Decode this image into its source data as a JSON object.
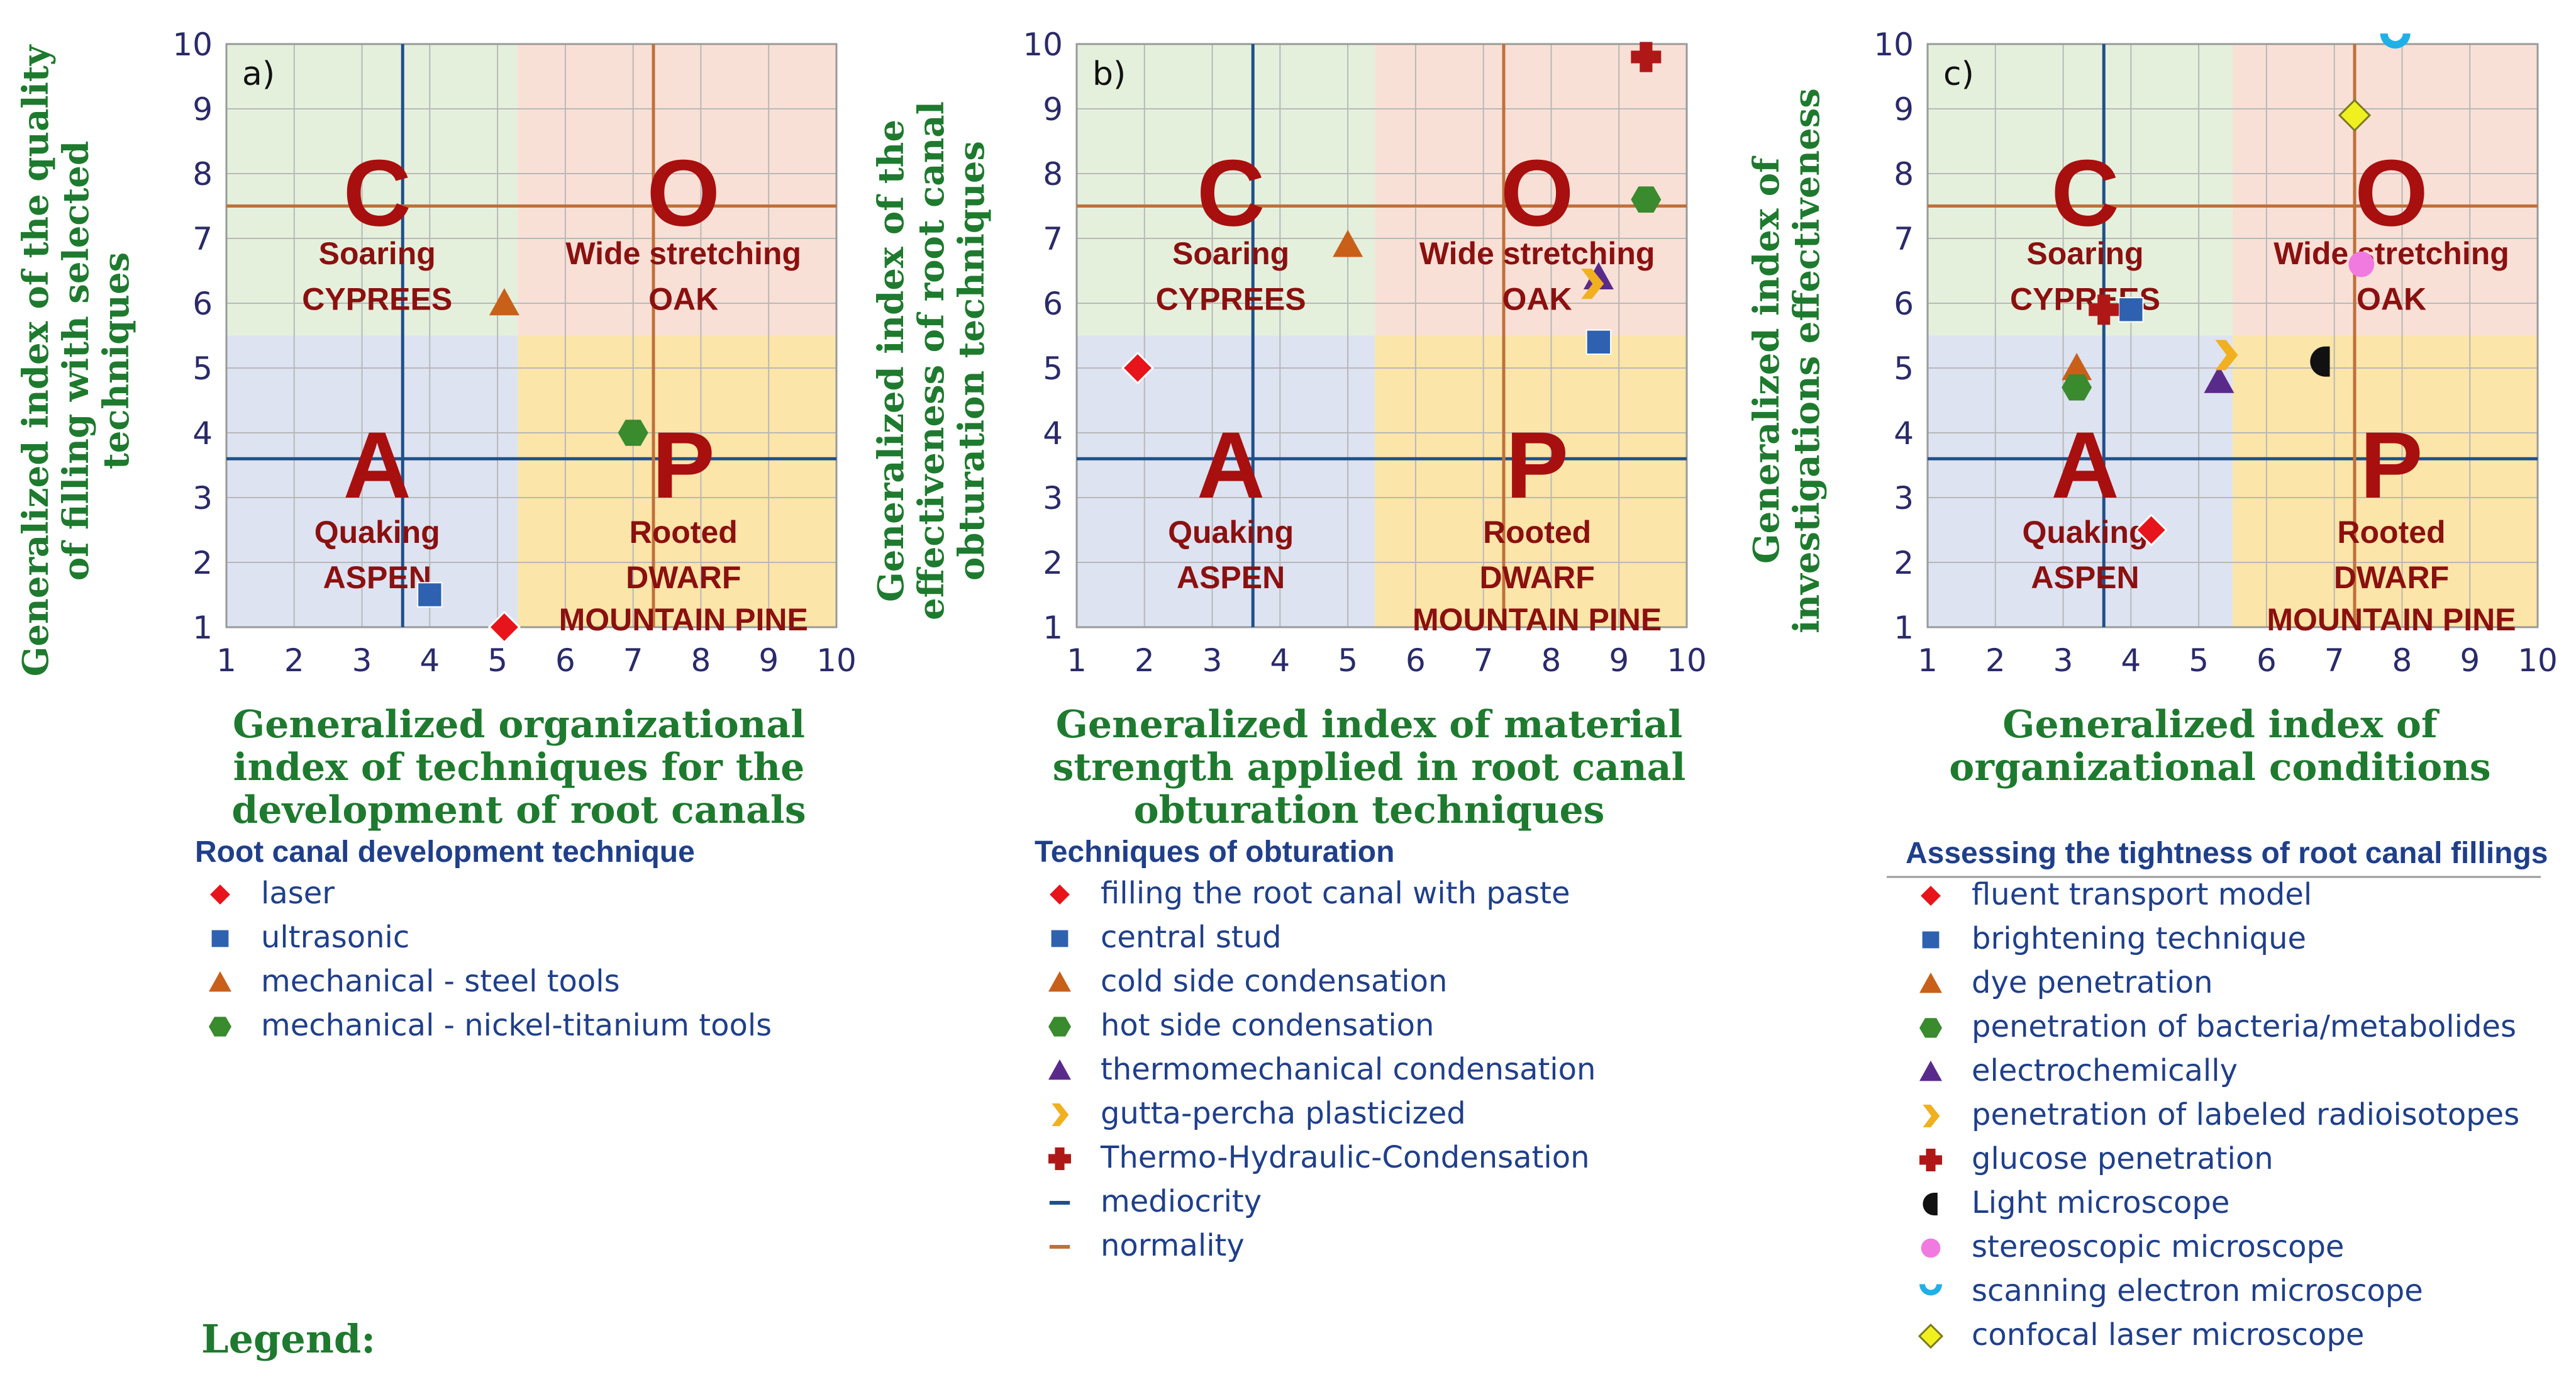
{
  "legend_caption": "Legend:",
  "quadrants": {
    "C": {
      "letter": "C",
      "line1": "Soaring",
      "line2": "CYPREES"
    },
    "O": {
      "letter": "O",
      "line1": "Wide stretching",
      "line2": "OAK"
    },
    "A": {
      "letter": "A",
      "line1": "Quaking",
      "line2": "ASPEN"
    },
    "P": {
      "letter": "P",
      "line1": "Rooted",
      "line2": "DWARF",
      "line3": "MOUNTAIN PINE"
    }
  },
  "colors": {
    "green_zone": "#e4f0dc",
    "orange_zone": "#f9e0d6",
    "blue_zone": "#dde3f1",
    "yellow_zone": "#fbe5a8",
    "mediocrity": "#1f4f8a",
    "normality": "#c0703a",
    "grid": "#b8b8b8"
  },
  "chart_data": [
    {
      "type": "scatter",
      "panel": "a)",
      "xlim": [
        1,
        10
      ],
      "ylim": [
        1,
        10
      ],
      "xticks": [
        "1",
        "2",
        "3",
        "4",
        "5",
        "6",
        "7",
        "8",
        "9",
        "10"
      ],
      "yticks": [
        "1",
        "2",
        "3",
        "4",
        "5",
        "6",
        "7",
        "8",
        "9",
        "10"
      ],
      "xlabel_lines": [
        "Generalized organizational",
        "index of techniques for the",
        "development of root canals"
      ],
      "ylabel_lines": [
        "Generalized index of the quality",
        "of filling with selected",
        "techniques"
      ],
      "zones": {
        "x_split": 5.3,
        "y_split": 5.5
      },
      "mediocrity": {
        "x": 7.3,
        "y": 3.6
      },
      "normality": {
        "x": 7.3,
        "y": 7.5
      },
      "legend_title": "Root canal development technique",
      "series": [
        {
          "name": "laser",
          "marker": "diamond",
          "color": "#e8141c",
          "x": 5.1,
          "y": 1.0
        },
        {
          "name": "ultrasonic",
          "marker": "square",
          "color": "#2e62b0",
          "x": 4.0,
          "y": 1.5
        },
        {
          "name": "mechanical - steel tools",
          "marker": "triangle",
          "color": "#c8601a",
          "x": 5.1,
          "y": 6.0
        },
        {
          "name": "mechanical - nickel-titanium tools",
          "marker": "hexagon",
          "color": "#3a8a2e",
          "x": 7.0,
          "y": 4.0
        }
      ]
    },
    {
      "type": "scatter",
      "panel": "b)",
      "xlim": [
        1,
        10
      ],
      "ylim": [
        1,
        10
      ],
      "xticks": [
        "1",
        "2",
        "3",
        "4",
        "5",
        "6",
        "7",
        "8",
        "9",
        "10"
      ],
      "yticks": [
        "1",
        "2",
        "3",
        "4",
        "5",
        "6",
        "7",
        "8",
        "9",
        "10"
      ],
      "xlabel_lines": [
        "Generalized index of material",
        "strength applied in root canal",
        "obturation techniques"
      ],
      "ylabel_lines": [
        "Generalized index of the",
        "effectiveness of root canal",
        "obturation techniques"
      ],
      "zones": {
        "x_split": 5.4,
        "y_split": 5.5
      },
      "mediocrity": {
        "x": 7.3,
        "y": 3.6
      },
      "normality": {
        "x": 7.3,
        "y": 7.5
      },
      "legend_title": "Techniques of obturation",
      "series": [
        {
          "name": "filling the root canal with paste",
          "marker": "diamond",
          "color": "#e8141c",
          "x": 1.9,
          "y": 5.0
        },
        {
          "name": "central stud",
          "marker": "square",
          "color": "#2e62b0",
          "x": 8.7,
          "y": 5.4
        },
        {
          "name": "cold side condensation",
          "marker": "triangle",
          "color": "#c8601a",
          "x": 5.0,
          "y": 6.9
        },
        {
          "name": "hot side condensation",
          "marker": "hexagon",
          "color": "#3a8a2e",
          "x": 9.4,
          "y": 7.6
        },
        {
          "name": "thermomechanical condensation",
          "marker": "triangle",
          "color": "#5a2a8a",
          "x": 8.7,
          "y": 6.4
        },
        {
          "name": "gutta-percha plasticized",
          "marker": "chevron",
          "color": "#f0b020",
          "x": 8.6,
          "y": 6.3
        },
        {
          "name": "Thermo-Hydraulic-Condensation",
          "marker": "cross",
          "color": "#b01818",
          "x": 9.4,
          "y": 9.8
        },
        {
          "name": "mediocrity",
          "marker": "line",
          "color": "#1f4f8a"
        },
        {
          "name": "normality",
          "marker": "line",
          "color": "#c0703a"
        }
      ]
    },
    {
      "type": "scatter",
      "panel": "c)",
      "xlim": [
        1,
        10
      ],
      "ylim": [
        1,
        10
      ],
      "xticks": [
        "1",
        "2",
        "3",
        "4",
        "5",
        "6",
        "7",
        "8",
        "9",
        "10"
      ],
      "yticks": [
        "1",
        "2",
        "3",
        "4",
        "5",
        "6",
        "7",
        "8",
        "9",
        "10"
      ],
      "xlabel_lines": [
        "Generalized index of",
        "organizational conditions"
      ],
      "ylabel_lines": [
        "Generalized index of",
        "investigations effectiveness"
      ],
      "zones": {
        "x_split": 5.5,
        "y_split": 5.5
      },
      "mediocrity": {
        "x": 7.3,
        "y": 3.6
      },
      "normality": {
        "x": 7.3,
        "y": 7.5
      },
      "legend_title": "Assessing the tightness of root canal fillings",
      "series": [
        {
          "name": "fluent transport model",
          "marker": "diamond",
          "color": "#e8141c",
          "x": 4.3,
          "y": 2.5
        },
        {
          "name": "brightening technique",
          "marker": "square",
          "color": "#2e62b0",
          "x": 4.0,
          "y": 5.9
        },
        {
          "name": "dye penetration",
          "marker": "triangle",
          "color": "#c8601a",
          "x": 3.2,
          "y": 5.0
        },
        {
          "name": "penetration of bacteria/metabolides",
          "marker": "hexagon",
          "color": "#3a8a2e",
          "x": 3.2,
          "y": 4.7
        },
        {
          "name": "electrochemically",
          "marker": "triangle",
          "color": "#5a2a8a",
          "x": 5.3,
          "y": 4.8
        },
        {
          "name": "penetration of labeled radioisotopes",
          "marker": "chevron",
          "color": "#f0b020",
          "x": 5.4,
          "y": 5.2
        },
        {
          "name": "glucose penetration",
          "marker": "cross",
          "color": "#b01818",
          "x": 3.6,
          "y": 5.9
        },
        {
          "name": "Light microscope",
          "marker": "half-disc",
          "color": "#111111",
          "x": 6.8,
          "y": 5.1
        },
        {
          "name": "stereoscopic microscope",
          "marker": "circle",
          "color": "#f07ae0",
          "x": 7.4,
          "y": 6.6
        },
        {
          "name": "scanning electron microscope",
          "marker": "cup",
          "color": "#20b0e8",
          "x": 7.9,
          "y": 10.0
        },
        {
          "name": "confocal laser microscope",
          "marker": "diamond-outline",
          "color": "#f0f020",
          "x": 7.3,
          "y": 8.9
        }
      ]
    }
  ]
}
